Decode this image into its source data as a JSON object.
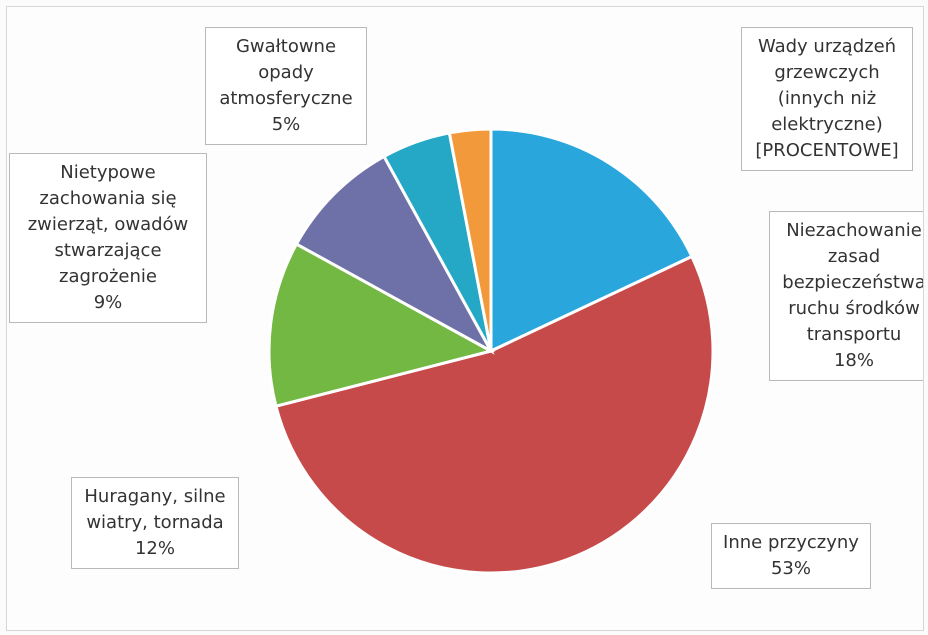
{
  "chart_data": {
    "type": "pie",
    "slices": [
      {
        "label": "Niezachowanie\nzasad\nbezpieczeństwa\nruchu środków\ntransportu",
        "value": 18,
        "value_label": "18%",
        "color": "#29a7dd"
      },
      {
        "label": "Inne przyczyny",
        "value": 53,
        "value_label": "53%",
        "color": "#c74a4a"
      },
      {
        "label": "Huragany, silne\nwiatry, tornada",
        "value": 12,
        "value_label": "12%",
        "color": "#72b843"
      },
      {
        "label": "Nietypowe\nzachowania się\nzwierząt, owadów\nstwarzające\nzagrożenie",
        "value": 9,
        "value_label": "9%",
        "color": "#6e71a7"
      },
      {
        "label": "Gwałtowne\nopady\natmosferyczne",
        "value": 5,
        "value_label": "5%",
        "color": "#24a8c6"
      },
      {
        "label": "Wady urządzeń\ngrzewczych\n(innych niż\nelektryczne)",
        "value": 3,
        "value_label": "[PROCENTOWE]",
        "color": "#f29a3b"
      }
    ]
  }
}
